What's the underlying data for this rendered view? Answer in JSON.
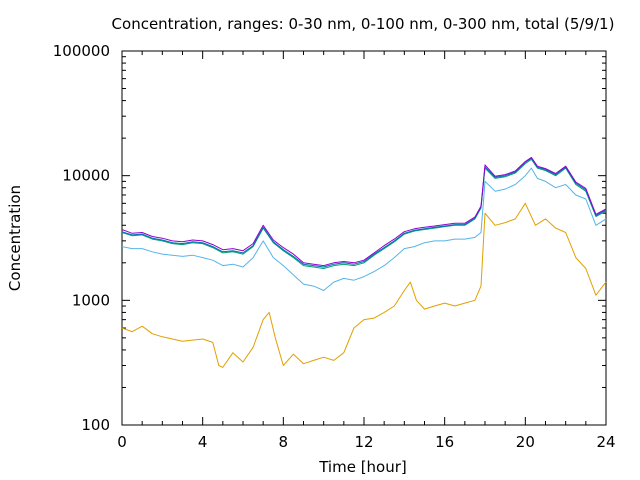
{
  "chart_data": {
    "type": "line",
    "title": "Concentration, ranges: 0-30 nm, 0-100 nm, 0-300 nm, total (5/9/1)",
    "xlabel": "Time [hour]",
    "ylabel": "Concentration",
    "xlim": [
      0,
      24
    ],
    "ylim": [
      100,
      100000
    ],
    "yscale": "log",
    "grid": false,
    "legend": "none",
    "xticks": [
      0,
      4,
      8,
      12,
      16,
      20,
      24
    ],
    "xtick_labels": [
      "0",
      "4",
      "8",
      "12",
      "16",
      "20",
      "24"
    ],
    "yticks": [
      100,
      1000,
      10000,
      100000
    ],
    "ytick_labels": [
      "100",
      "1000",
      "10000",
      "100000"
    ],
    "series": [
      {
        "color": "#e0a000",
        "x": [
          0,
          0.5,
          1,
          1.5,
          2,
          2.5,
          3,
          3.5,
          4,
          4.5,
          4.8,
          5,
          5.5,
          6,
          6.5,
          7,
          7.3,
          7.6,
          8,
          8.5,
          9,
          9.5,
          10,
          10.5,
          11,
          11.5,
          12,
          12.5,
          13,
          13.5,
          14,
          14.3,
          14.6,
          15,
          15.5,
          16,
          16.5,
          17,
          17.5,
          17.8,
          18,
          18.5,
          19,
          19.5,
          20,
          20.5,
          21,
          21.5,
          22,
          22.5,
          23,
          23.5,
          24
        ],
        "values": [
          600,
          560,
          620,
          540,
          510,
          490,
          470,
          480,
          490,
          460,
          300,
          290,
          380,
          320,
          420,
          700,
          800,
          500,
          300,
          370,
          310,
          330,
          350,
          330,
          380,
          600,
          700,
          720,
          800,
          900,
          1200,
          1400,
          1000,
          850,
          900,
          950,
          900,
          950,
          1000,
          1300,
          5000,
          4000,
          4200,
          4500,
          6000,
          4000,
          4500,
          3800,
          3500,
          2200,
          1800,
          1100,
          1400
        ]
      },
      {
        "color": "#56b4e9",
        "x": [
          0,
          0.5,
          1,
          1.5,
          2,
          2.5,
          3,
          3.5,
          4,
          4.5,
          5,
          5.5,
          6,
          6.5,
          7,
          7.5,
          8,
          8.5,
          9,
          9.5,
          10,
          10.5,
          11,
          11.5,
          12,
          12.5,
          13,
          13.5,
          14,
          14.5,
          15,
          15.5,
          16,
          16.5,
          17,
          17.5,
          17.8,
          18,
          18.5,
          19,
          19.5,
          20,
          20.3,
          20.6,
          21,
          21.5,
          22,
          22.5,
          23,
          23.5,
          24
        ],
        "values": [
          2700,
          2600,
          2600,
          2450,
          2350,
          2300,
          2250,
          2300,
          2200,
          2100,
          1900,
          1950,
          1850,
          2200,
          3000,
          2200,
          1900,
          1600,
          1350,
          1300,
          1200,
          1400,
          1500,
          1450,
          1550,
          1700,
          1900,
          2200,
          2600,
          2700,
          2900,
          3000,
          3000,
          3100,
          3100,
          3200,
          3500,
          9000,
          7500,
          7800,
          8500,
          10000,
          11500,
          9500,
          9000,
          8000,
          8500,
          7000,
          6500,
          4000,
          4500
        ]
      },
      {
        "color": "#009e73",
        "x": [
          0,
          0.5,
          1,
          1.5,
          2,
          2.5,
          3,
          3.5,
          4,
          4.5,
          5,
          5.5,
          6,
          6.5,
          7,
          7.5,
          8,
          8.5,
          9,
          9.5,
          10,
          10.5,
          11,
          11.5,
          12,
          12.5,
          13,
          13.5,
          14,
          14.5,
          15,
          15.5,
          16,
          16.5,
          17,
          17.5,
          17.8,
          18,
          18.5,
          19,
          19.5,
          20,
          20.3,
          20.6,
          21,
          21.5,
          22,
          22.5,
          23,
          23.5,
          24
        ],
        "values": [
          3500,
          3300,
          3350,
          3100,
          3000,
          2850,
          2800,
          2900,
          2850,
          2650,
          2400,
          2450,
          2350,
          2700,
          3800,
          2900,
          2500,
          2200,
          1900,
          1850,
          1800,
          1900,
          1950,
          1900,
          2000,
          2300,
          2600,
          2950,
          3400,
          3600,
          3700,
          3800,
          3900,
          4000,
          4000,
          4500,
          5500,
          11500,
          9500,
          9800,
          10500,
          12500,
          13500,
          11500,
          11000,
          10000,
          11500,
          8500,
          7500,
          4700,
          5200
        ]
      },
      {
        "color": "#0072b2",
        "x": [
          0,
          0.5,
          1,
          1.5,
          2,
          2.5,
          3,
          3.5,
          4,
          4.5,
          5,
          5.5,
          6,
          6.5,
          7,
          7.5,
          8,
          8.5,
          9,
          9.5,
          10,
          10.5,
          11,
          11.5,
          12,
          12.5,
          13,
          13.5,
          14,
          14.5,
          15,
          15.5,
          16,
          16.5,
          17,
          17.5,
          17.8,
          18,
          18.5,
          19,
          19.5,
          20,
          20.3,
          20.6,
          21,
          21.5,
          22,
          22.5,
          23,
          23.5,
          24
        ],
        "values": [
          3550,
          3350,
          3400,
          3150,
          3050,
          2900,
          2850,
          2950,
          2900,
          2700,
          2450,
          2500,
          2400,
          2750,
          3850,
          2950,
          2550,
          2250,
          1950,
          1900,
          1850,
          1950,
          2000,
          1950,
          2050,
          2350,
          2650,
          3000,
          3450,
          3650,
          3750,
          3850,
          3950,
          4050,
          4050,
          4550,
          5600,
          11800,
          9700,
          10000,
          10700,
          12800,
          13800,
          11700,
          11200,
          10200,
          11700,
          8700,
          7700,
          4800,
          5300
        ]
      },
      {
        "color": "#9400d3",
        "x": [
          0,
          0.5,
          1,
          1.5,
          2,
          2.5,
          3,
          3.5,
          4,
          4.5,
          5,
          5.5,
          6,
          6.5,
          7,
          7.5,
          8,
          8.5,
          9,
          9.5,
          10,
          10.5,
          11,
          11.5,
          12,
          12.5,
          13,
          13.5,
          14,
          14.5,
          15,
          15.5,
          16,
          16.5,
          17,
          17.5,
          17.8,
          18,
          18.5,
          19,
          19.5,
          20,
          20.3,
          20.6,
          21,
          21.5,
          22,
          22.5,
          23,
          23.5,
          24
        ],
        "values": [
          3700,
          3450,
          3500,
          3250,
          3150,
          3000,
          2950,
          3050,
          3000,
          2800,
          2550,
          2600,
          2500,
          2850,
          4000,
          3050,
          2650,
          2350,
          2000,
          1950,
          1900,
          2000,
          2050,
          2000,
          2100,
          2400,
          2750,
          3100,
          3550,
          3750,
          3850,
          3950,
          4050,
          4150,
          4150,
          4650,
          5700,
          12200,
          9900,
          10200,
          10900,
          13000,
          14000,
          11900,
          11400,
          10400,
          11900,
          8900,
          7900,
          4900,
          5400
        ]
      }
    ]
  }
}
